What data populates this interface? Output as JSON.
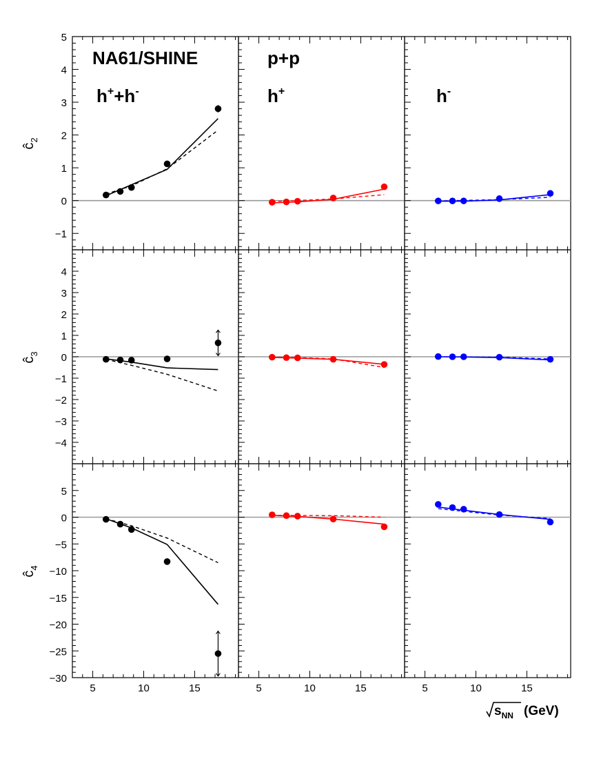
{
  "figure": {
    "experiment_label": "NA61/SHINE",
    "system_label": "p+p",
    "xlabel": "(GeV)",
    "xlabel_radicand": "s",
    "xlabel_radicand_sub": "NN",
    "column_labels": [
      {
        "base": "h",
        "sup": "+",
        "mid": "+h",
        "sup2": "-"
      },
      {
        "base": "h",
        "sup": "+",
        "mid": "",
        "sup2": ""
      },
      {
        "base": "h",
        "sup": "-",
        "mid": "",
        "sup2": ""
      }
    ],
    "row_labels": [
      {
        "base": "ĉ",
        "sub": "2"
      },
      {
        "base": "ĉ",
        "sub": "3"
      },
      {
        "base": "ĉ",
        "sub": "4"
      }
    ]
  },
  "chart_data": {
    "type": "scatter",
    "x": [
      6.3,
      7.7,
      8.8,
      12.3,
      17.3
    ],
    "xlim": [
      3,
      19.3
    ],
    "x_ticks": [
      5,
      10,
      15
    ],
    "rows": [
      {
        "quantity": "c2",
        "ylim": [
          -1.5,
          5
        ],
        "y_ticks": [
          -1,
          0,
          1,
          2,
          3,
          4,
          5
        ]
      },
      {
        "quantity": "c3",
        "ylim": [
          -5,
          5
        ],
        "y_ticks": [
          -4,
          -3,
          -2,
          -1,
          0,
          1,
          2,
          3,
          4
        ]
      },
      {
        "quantity": "c4",
        "ylim": [
          -30,
          10
        ],
        "y_ticks": [
          -30,
          -25,
          -20,
          -15,
          -10,
          -5,
          0,
          5
        ]
      }
    ],
    "colors": {
      "h+h-": "#000000",
      "h+": "#ff0000",
      "h-": "#0000ff",
      "zero_line": "#999999"
    },
    "panels": [
      {
        "row": 0,
        "col": 0,
        "charge": "h+h-",
        "points": [
          0.17,
          0.28,
          0.4,
          1.12,
          2.8
        ],
        "err_low": [
          0,
          0,
          0,
          0,
          0.1
        ],
        "err_high": [
          0,
          0,
          0,
          0,
          0.1
        ],
        "solid": [
          [
            6.3,
            0.15
          ],
          [
            12.3,
            0.95
          ],
          [
            17.3,
            2.5
          ]
        ],
        "dashed": [
          [
            6.3,
            0.2
          ],
          [
            8.8,
            0.45
          ],
          [
            12.3,
            0.97
          ],
          [
            17.3,
            2.15
          ]
        ]
      },
      {
        "row": 0,
        "col": 1,
        "charge": "h+",
        "points": [
          -0.05,
          -0.04,
          -0.02,
          0.08,
          0.42
        ],
        "err_low": [
          0,
          0,
          0,
          0,
          0
        ],
        "err_high": [
          0,
          0,
          0,
          0,
          0
        ],
        "solid": [
          [
            6.3,
            -0.07
          ],
          [
            8.8,
            -0.04
          ],
          [
            12.3,
            0.04
          ],
          [
            17.3,
            0.35
          ]
        ],
        "dashed": [
          [
            6.3,
            -0.03
          ],
          [
            12.3,
            0.05
          ],
          [
            17.3,
            0.18
          ]
        ]
      },
      {
        "row": 0,
        "col": 2,
        "charge": "h-",
        "points": [
          -0.01,
          -0.01,
          -0.01,
          0.06,
          0.22
        ],
        "err_low": [
          0,
          0,
          0,
          0,
          0
        ],
        "err_high": [
          0,
          0,
          0,
          0,
          0
        ],
        "solid": [
          [
            6.3,
            -0.02
          ],
          [
            8.8,
            -0.02
          ],
          [
            12.3,
            0.02
          ],
          [
            17.3,
            0.18
          ]
        ],
        "dashed": [
          [
            6.3,
            -0.01
          ],
          [
            12.3,
            0.03
          ],
          [
            17.3,
            0.1
          ]
        ]
      },
      {
        "row": 1,
        "col": 0,
        "charge": "h+h-",
        "points": [
          -0.12,
          -0.15,
          -0.16,
          -0.1,
          0.65
        ],
        "err_low": [
          0,
          0,
          0,
          0,
          0.6
        ],
        "err_high": [
          0,
          0,
          0,
          0,
          0.6
        ],
        "solid": [
          [
            6.3,
            -0.1
          ],
          [
            8.8,
            -0.25
          ],
          [
            12.3,
            -0.52
          ],
          [
            17.3,
            -0.6
          ]
        ],
        "dashed": [
          [
            6.3,
            -0.12
          ],
          [
            8.8,
            -0.4
          ],
          [
            12.3,
            -0.82
          ],
          [
            17.3,
            -1.6
          ]
        ]
      },
      {
        "row": 1,
        "col": 1,
        "charge": "h+",
        "points": [
          -0.02,
          -0.04,
          -0.05,
          -0.12,
          -0.36
        ],
        "err_low": [
          0,
          0,
          0,
          0,
          0
        ],
        "err_high": [
          0,
          0,
          0,
          0,
          0
        ],
        "solid": [
          [
            6.3,
            -0.03
          ],
          [
            8.8,
            -0.06
          ],
          [
            12.3,
            -0.12
          ],
          [
            17.3,
            -0.35
          ]
        ],
        "dashed": [
          [
            6.3,
            -0.02
          ],
          [
            8.8,
            -0.04
          ],
          [
            12.3,
            -0.1
          ],
          [
            17.3,
            -0.5
          ]
        ]
      },
      {
        "row": 1,
        "col": 2,
        "charge": "h-",
        "points": [
          0.01,
          0.0,
          0.0,
          -0.02,
          -0.12
        ],
        "err_low": [
          0,
          0,
          0,
          0,
          0
        ],
        "err_high": [
          0,
          0,
          0,
          0,
          0
        ],
        "solid": [
          [
            6.3,
            0.0
          ],
          [
            8.8,
            -0.01
          ],
          [
            12.3,
            -0.04
          ],
          [
            17.3,
            -0.15
          ]
        ],
        "dashed": [
          [
            6.3,
            0.0
          ],
          [
            12.3,
            -0.02
          ],
          [
            17.3,
            -0.1
          ]
        ]
      },
      {
        "row": 2,
        "col": 0,
        "charge": "h+h-",
        "points": [
          -0.4,
          -1.3,
          -2.3,
          -8.3,
          -25.5
        ],
        "err_low": [
          0,
          0,
          0,
          0,
          4.2
        ],
        "err_high": [
          0,
          0,
          0,
          0,
          4.2
        ],
        "solid": [
          [
            6.3,
            -0.3
          ],
          [
            8.8,
            -2.0
          ],
          [
            12.3,
            -5.1
          ],
          [
            17.3,
            -16.3
          ]
        ],
        "dashed": [
          [
            6.3,
            -0.3
          ],
          [
            8.8,
            -1.6
          ],
          [
            12.3,
            -3.9
          ],
          [
            17.3,
            -8.5
          ]
        ]
      },
      {
        "row": 2,
        "col": 1,
        "charge": "h+",
        "points": [
          0.45,
          0.3,
          0.2,
          -0.35,
          -1.8
        ],
        "err_low": [
          0,
          0,
          0,
          0,
          0
        ],
        "err_high": [
          0,
          0,
          0,
          0,
          0
        ],
        "solid": [
          [
            6.3,
            0.35
          ],
          [
            8.8,
            0.15
          ],
          [
            12.3,
            -0.35
          ],
          [
            17.3,
            -1.3
          ]
        ],
        "dashed": [
          [
            6.3,
            0.35
          ],
          [
            12.3,
            0.3
          ],
          [
            17.3,
            0.0
          ]
        ]
      },
      {
        "row": 2,
        "col": 2,
        "charge": "h-",
        "points": [
          2.4,
          1.8,
          1.5,
          0.5,
          -0.9
        ],
        "err_low": [
          0,
          0,
          0,
          0,
          0
        ],
        "err_high": [
          0,
          0,
          0,
          0,
          0
        ],
        "solid": [
          [
            6.3,
            1.9
          ],
          [
            8.8,
            1.3
          ],
          [
            12.3,
            0.5
          ],
          [
            17.3,
            -0.4
          ]
        ],
        "dashed": [
          [
            6.3,
            1.6
          ],
          [
            8.8,
            1.1
          ],
          [
            12.3,
            0.4
          ],
          [
            17.3,
            -0.25
          ]
        ]
      }
    ]
  }
}
